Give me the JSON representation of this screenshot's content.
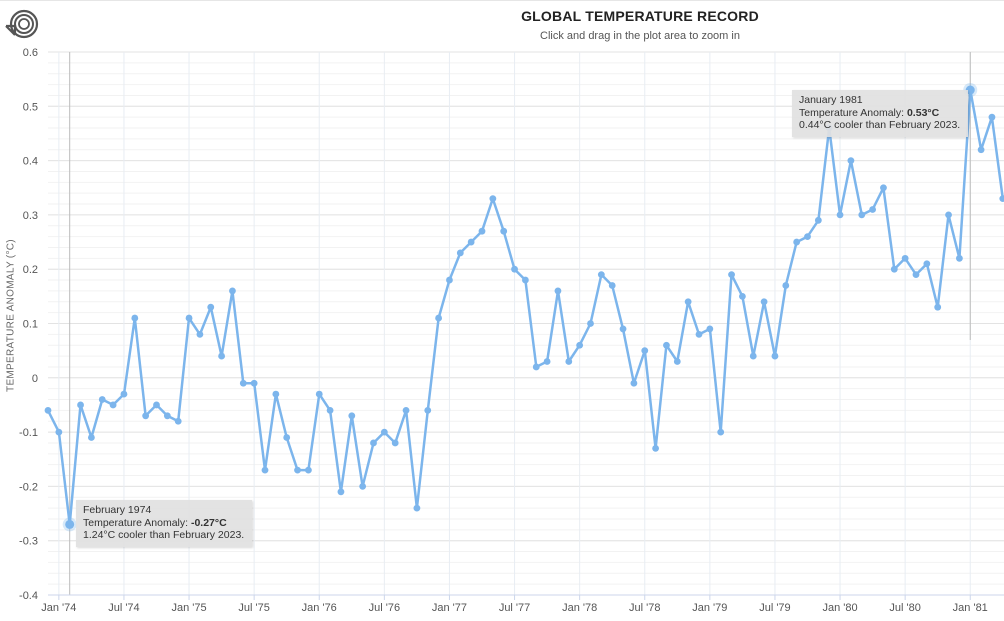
{
  "header": {
    "title": "GLOBAL TEMPERATURE RECORD",
    "subtitle": "Click and drag in the plot area to zoom in"
  },
  "toolbar": {
    "reset_icon": "reset-zoom-icon"
  },
  "chart_data": {
    "type": "line",
    "title": "GLOBAL TEMPERATURE RECORD",
    "ylabel": "TEMPERATURE ANOMALY (°C)",
    "xlabel": "",
    "ylim": [
      -0.4,
      0.6
    ],
    "yticks": [
      "0.6",
      "0.5",
      "0.4",
      "0.3",
      "0.2",
      "0.1",
      "0",
      "-0.1",
      "-0.2",
      "-0.3",
      "-0.4"
    ],
    "xticks": [
      "Jan '74",
      "Jul '74",
      "Jan '75",
      "Jul '75",
      "Jan '76",
      "Jul '76",
      "Jan '77",
      "Jul '77",
      "Jan '78",
      "Jul '78",
      "Jan '79",
      "Jul '79",
      "Jan '80",
      "Jul '80",
      "Jan '81"
    ],
    "x_start": "1973-12",
    "grid": true,
    "color": "#7cb5ec",
    "series": [
      {
        "values": [
          -0.06,
          -0.1,
          -0.27,
          -0.05,
          -0.11,
          -0.04,
          -0.05,
          -0.03,
          0.11,
          -0.07,
          -0.05,
          -0.07,
          -0.08,
          0.11,
          0.08,
          0.13,
          0.04,
          0.16,
          -0.01,
          -0.01,
          -0.17,
          -0.03,
          -0.11,
          -0.17,
          -0.17,
          -0.03,
          -0.06,
          -0.21,
          -0.07,
          -0.2,
          -0.12,
          -0.1,
          -0.12,
          -0.06,
          -0.24,
          -0.06,
          0.11,
          0.18,
          0.23,
          0.25,
          0.27,
          0.33,
          0.27,
          0.2,
          0.18,
          0.02,
          0.03,
          0.16,
          0.03,
          0.06,
          0.1,
          0.19,
          0.17,
          0.09,
          -0.01,
          0.05,
          -0.13,
          0.06,
          0.03,
          0.14,
          0.08,
          0.09,
          -0.1,
          0.19,
          0.15,
          0.04,
          0.14,
          0.04,
          0.17,
          0.25,
          0.26,
          0.29,
          0.46,
          0.3,
          0.4,
          0.3,
          0.31,
          0.35,
          0.2,
          0.22,
          0.19,
          0.21,
          0.13,
          0.3,
          0.22,
          0.53,
          0.42,
          0.48,
          0.33
        ]
      }
    ],
    "highlighted": [
      {
        "label": "February 1974",
        "value": -0.27
      },
      {
        "label": "January 1981",
        "value": 0.53
      }
    ]
  },
  "tooltips": [
    {
      "date": "February 1974",
      "anomaly_label": "Temperature Anomaly: ",
      "anomaly_value": "-0.27°C",
      "comparison": "1.24°C cooler than February 2023."
    },
    {
      "date": "January 1981",
      "anomaly_label": "Temperature Anomaly: ",
      "anomaly_value": "0.53°C",
      "comparison": "0.44°C cooler than February 2023."
    }
  ]
}
